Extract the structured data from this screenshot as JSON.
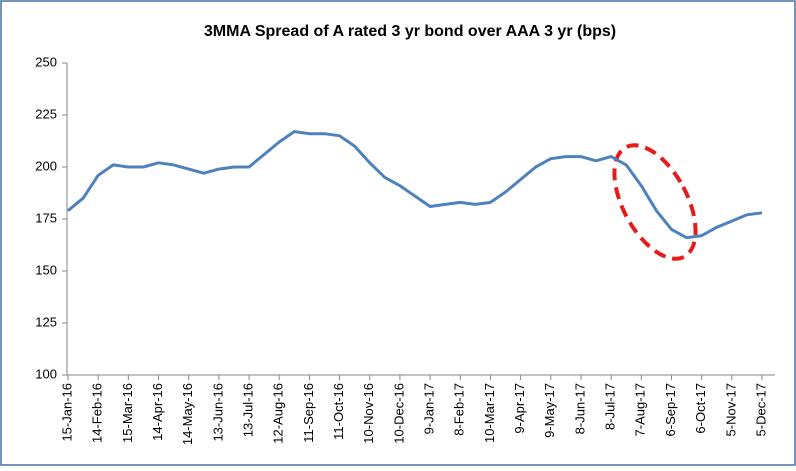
{
  "chart_data": {
    "type": "line",
    "title": "3MMA Spread of A rated 3 yr bond over AAA 3 yr (bps)",
    "categories": [
      "15-Jan-16",
      null,
      "14-Feb-16",
      null,
      "15-Mar-16",
      null,
      "14-Apr-16",
      null,
      "14-May-16",
      null,
      "13-Jun-16",
      null,
      "13-Jul-16",
      null,
      "12-Aug-16",
      null,
      "11-Sep-16",
      null,
      "11-Oct-16",
      null,
      "10-Nov-16",
      null,
      "10-Dec-16",
      null,
      "9-Jan-17",
      null,
      "8-Feb-17",
      null,
      "10-Mar-17",
      null,
      "9-Apr-17",
      null,
      "9-May-17",
      null,
      "8-Jun-17",
      null,
      "8-Jul-17",
      null,
      "7-Aug-17",
      null,
      "6-Sep-17",
      null,
      "6-Oct-17",
      null,
      "5-Nov-17",
      null,
      "5-Dec-17"
    ],
    "series": [
      {
        "color": "#4f81bd",
        "values": [
          179,
          185,
          196,
          201,
          200,
          200,
          202,
          201,
          199,
          197,
          199,
          200,
          200,
          206,
          212,
          217,
          216,
          216,
          215,
          210,
          202,
          195,
          191,
          186,
          181,
          182,
          183,
          182,
          183,
          188,
          194,
          200,
          204,
          205,
          205,
          203,
          205,
          201,
          191,
          179,
          170,
          166,
          167,
          171,
          174,
          177,
          178
        ]
      }
    ],
    "ylim": [
      100,
      250
    ],
    "yticks": [
      100,
      125,
      150,
      175,
      200,
      225,
      250
    ],
    "grid": false
  }
}
